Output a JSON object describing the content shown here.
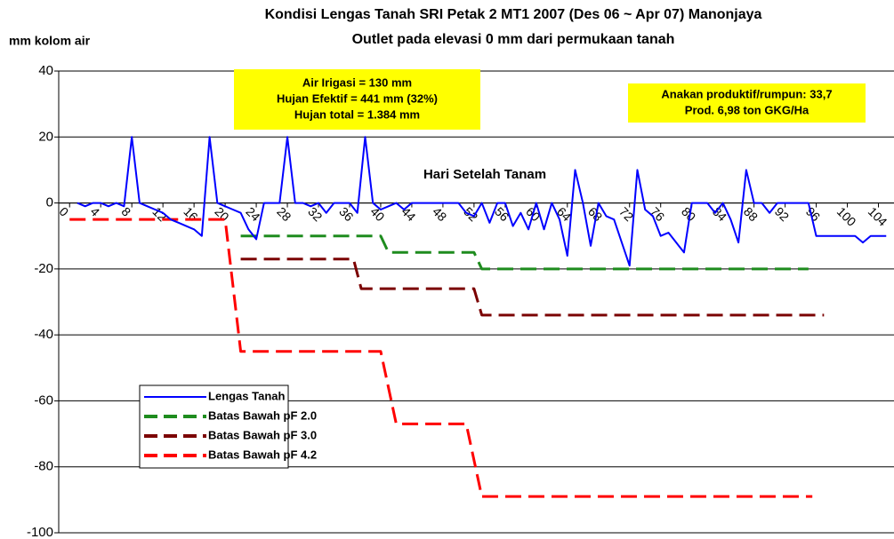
{
  "chart_data": {
    "type": "line",
    "title": [
      "Kondisi Lengas Tanah SRI Petak 2 MT1 2007 (Des 06 ~ Apr 07) Manonjaya",
      "Outlet pada elevasi 0 mm dari permukaan tanah"
    ],
    "y_label": "mm kolom air",
    "x_label": "Hari Setelah Tanam",
    "annotations": [
      {
        "lines": [
          "Air Irigasi = 130 mm",
          "Hujan Efektif = 441 mm (32%)",
          "Hujan total = 1.384 mm"
        ]
      },
      {
        "lines": [
          "Anakan produktif/rumpun: 33,7",
          "Prod. 6,98 ton GKG/Ha"
        ]
      }
    ],
    "xlim": [
      -1.4,
      106
    ],
    "xticks": [
      0,
      4,
      8,
      12,
      16,
      20,
      24,
      28,
      32,
      36,
      40,
      44,
      48,
      52,
      56,
      60,
      64,
      68,
      72,
      76,
      80,
      84,
      88,
      92,
      96,
      100,
      104
    ],
    "ylim": [
      -100,
      40
    ],
    "yticks": [
      -100,
      -80,
      -60,
      -40,
      -20,
      0,
      20,
      40
    ],
    "grid": true,
    "series": [
      {
        "name": "Lengas Tanah",
        "color": "#0000ff",
        "dashed": false,
        "x": [
          1,
          2,
          3,
          4,
          5,
          6,
          7,
          8,
          9,
          10,
          11,
          12,
          13,
          14,
          15,
          16,
          17,
          18,
          19,
          20,
          21,
          22,
          23,
          24,
          25,
          26,
          27,
          28,
          29,
          30,
          31,
          32,
          33,
          34,
          35,
          36,
          37,
          38,
          39,
          40,
          41,
          42,
          43,
          44,
          45,
          46,
          47,
          48,
          49,
          50,
          51,
          52,
          53,
          54,
          55,
          56,
          57,
          58,
          59,
          60,
          61,
          62,
          63,
          64,
          65,
          66,
          67,
          68,
          69,
          70,
          71,
          72,
          73,
          74,
          75,
          76,
          77,
          78,
          79,
          80,
          81,
          82,
          83,
          84,
          85,
          86,
          87,
          88,
          89,
          90,
          91,
          92,
          93,
          94,
          95,
          96,
          97,
          98,
          99,
          100,
          101,
          102,
          103,
          104,
          105
        ],
        "values": [
          0,
          -1,
          0,
          0,
          -1,
          0,
          -1,
          20,
          0,
          -1,
          -2,
          -3,
          -5,
          -6,
          -7,
          -8,
          -10,
          20,
          0,
          -1,
          -2,
          -3,
          -8,
          -11,
          0,
          0,
          0,
          20,
          0,
          0,
          -1,
          0,
          -3,
          0,
          0,
          0,
          -3,
          20,
          0,
          -2,
          -1,
          0,
          -2,
          0,
          0,
          0,
          0,
          0,
          0,
          0,
          -3,
          -4,
          0,
          -6,
          0,
          0,
          -7,
          -3,
          -8,
          0,
          -8,
          0,
          -5,
          -16,
          10,
          0,
          -13,
          0,
          -4,
          -5,
          -12,
          -19,
          10,
          -2,
          -4,
          -10,
          -9,
          -12,
          -15,
          0,
          0,
          0,
          -3,
          0,
          -5,
          -12,
          10,
          0,
          0,
          -3,
          0,
          0,
          0,
          0,
          0,
          -10,
          -10,
          -10,
          -10,
          -10,
          -10,
          -12,
          -10,
          -10,
          -10
        ]
      },
      {
        "name": "Batas Bawah pF 2.0",
        "color": "#1e8c1e",
        "dashed": true,
        "x": [
          22,
          40,
          41,
          52,
          53,
          95
        ],
        "values": [
          -10,
          -10,
          -15,
          -15,
          -20,
          -20
        ]
      },
      {
        "name": "Batas Bawah pF 3.0",
        "color": "#7b0000",
        "dashed": true,
        "x": [
          22,
          36.5,
          37.5,
          52,
          53,
          97
        ],
        "values": [
          -17,
          -17,
          -26,
          -26,
          -34,
          -34
        ]
      },
      {
        "name": "Batas Bawah pF 4.2",
        "color": "#ff0000",
        "dashed": true,
        "x": [
          0,
          20,
          22,
          40,
          42,
          51,
          53,
          95.5
        ],
        "values": [
          -5,
          -5,
          -45,
          -45,
          -67,
          -67,
          -89,
          -89
        ]
      }
    ]
  }
}
